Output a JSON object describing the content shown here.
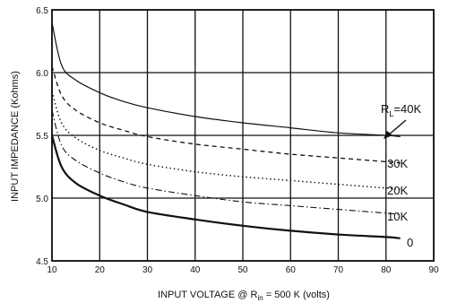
{
  "chart_data": {
    "type": "line",
    "xlabel": "INPUT VOLTAGE @ R",
    "xlabel_sub": "in",
    "xlabel_tail": " = 500 K  (volts)",
    "ylabel": "INPUT IMPEDANCE (Kohms)",
    "xlim": [
      10,
      90
    ],
    "ylim": [
      4.5,
      6.5
    ],
    "x_ticks": [
      "10",
      "20",
      "30",
      "40",
      "50",
      "60",
      "70",
      "80",
      "90"
    ],
    "y_ticks": [
      "4.5",
      "5.0",
      "5.5",
      "6.0",
      "6.5"
    ],
    "grid": true,
    "series": [
      {
        "name": "0",
        "style": "solid-heavy",
        "x": [
          10,
          12,
          15,
          20,
          25,
          30,
          40,
          50,
          60,
          70,
          80,
          83
        ],
        "y": [
          5.5,
          5.25,
          5.12,
          5.02,
          4.95,
          4.89,
          4.83,
          4.78,
          4.74,
          4.71,
          4.69,
          4.68
        ]
      },
      {
        "name": "10K",
        "style": "dash-dot",
        "x": [
          10,
          12,
          15,
          20,
          25,
          30,
          40,
          50,
          60,
          70,
          80,
          83
        ],
        "y": [
          5.7,
          5.42,
          5.3,
          5.2,
          5.13,
          5.08,
          5.02,
          4.97,
          4.94,
          4.91,
          4.88,
          4.87
        ]
      },
      {
        "name": "20K",
        "style": "dotted",
        "x": [
          10,
          12,
          15,
          20,
          25,
          30,
          40,
          50,
          60,
          70,
          80,
          83
        ],
        "y": [
          5.85,
          5.6,
          5.48,
          5.38,
          5.32,
          5.27,
          5.21,
          5.17,
          5.14,
          5.11,
          5.08,
          5.07
        ]
      },
      {
        "name": "30K",
        "style": "dashed",
        "x": [
          10,
          12,
          15,
          20,
          25,
          30,
          40,
          50,
          60,
          70,
          80,
          83
        ],
        "y": [
          6.05,
          5.82,
          5.7,
          5.6,
          5.54,
          5.49,
          5.43,
          5.39,
          5.35,
          5.32,
          5.29,
          5.28
        ]
      },
      {
        "name": "RL=40K",
        "style": "solid",
        "x": [
          10,
          12,
          15,
          20,
          25,
          30,
          40,
          50,
          60,
          70,
          80,
          83
        ],
        "y": [
          6.4,
          6.06,
          5.94,
          5.84,
          5.77,
          5.72,
          5.65,
          5.6,
          5.56,
          5.52,
          5.5,
          5.49
        ]
      }
    ],
    "annotations": [
      {
        "series": "RL=40K",
        "main": "R",
        "sub": "L",
        "tail": "=40K",
        "at": [
          80,
          5.5
        ]
      },
      {
        "series": "30K",
        "text": "30K",
        "at": [
          83,
          5.28
        ]
      },
      {
        "series": "20K",
        "text": "20K",
        "at": [
          83,
          5.07
        ]
      },
      {
        "series": "10K",
        "text": "10K",
        "at": [
          83,
          4.87
        ]
      },
      {
        "series": "0",
        "text": "0",
        "at": [
          83,
          4.68
        ]
      }
    ]
  }
}
